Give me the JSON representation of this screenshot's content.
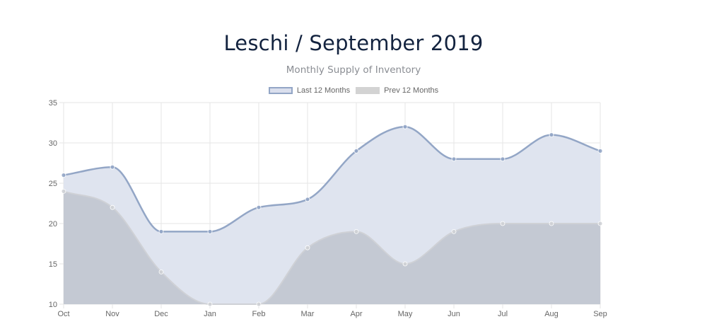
{
  "chart_data": {
    "type": "area",
    "title": "Leschi / September 2019",
    "subtitle": "Monthly Supply of Inventory",
    "categories": [
      "Oct",
      "Nov",
      "Dec",
      "Jan",
      "Feb",
      "Mar",
      "Apr",
      "May",
      "Jun",
      "Jul",
      "Aug",
      "Sep"
    ],
    "series": [
      {
        "name": "Last 12 Months",
        "values": [
          26,
          27,
          19,
          19,
          22,
          23,
          29,
          32,
          28,
          28,
          31,
          29
        ],
        "line_color": "#93a6c6",
        "fill_color": "#dfe4ef"
      },
      {
        "name": "Prev 12 Months",
        "values": [
          24,
          22,
          14,
          10,
          10,
          17,
          19,
          15,
          19,
          20,
          20,
          20
        ],
        "line_color": "#cfd1d6",
        "fill_color": "#c4c9d3"
      }
    ],
    "ylim": [
      10,
      35
    ],
    "yticks": [
      10,
      15,
      20,
      25,
      30,
      35
    ],
    "grid": true,
    "legend_position": "top"
  }
}
